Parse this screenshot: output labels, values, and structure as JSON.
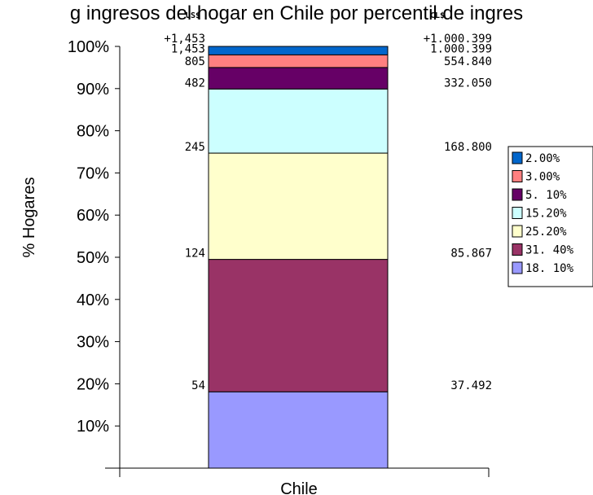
{
  "chart_data": {
    "type": "bar",
    "stacked": true,
    "title": "g ingresos del hogar en Chile por percentil de ingres",
    "ylabel": "% Hogares",
    "categories": [
      "Chile"
    ],
    "ylim": [
      0,
      100
    ],
    "y_ticks": [
      "10%",
      "20%",
      "30%",
      "40%",
      "50%",
      "60%",
      "70%",
      "80%",
      "90%",
      "100%"
    ],
    "series": [
      {
        "name": "18. 10%",
        "value": 18.1,
        "color": "#9999ff"
      },
      {
        "name": "31. 40%",
        "value": 31.4,
        "color": "#993366"
      },
      {
        "name": "25.20%",
        "value": 25.2,
        "color": "#ffffcc"
      },
      {
        "name": "15.20%",
        "value": 15.2,
        "color": "#ccffff"
      },
      {
        "name": "5. 10%",
        "value": 5.1,
        "color": "#660066"
      },
      {
        "name": "3.00%",
        "value": 3.0,
        "color": "#ff8080"
      },
      {
        "name": "2.00%",
        "value": 2.0,
        "color": "#0066cc"
      }
    ],
    "left_axis_header": "US$",
    "right_axis_header": "CL$",
    "left_labels": [
      {
        "text": "54",
        "at": 18.1
      },
      {
        "text": "124",
        "at": 49.5
      },
      {
        "text": "245",
        "at": 74.7
      },
      {
        "text": "482",
        "at": 89.9
      },
      {
        "text": "805",
        "at": 95.0
      },
      {
        "text": "1,453",
        "at": 98.0
      },
      {
        "text": "+1,453",
        "at": 100.0
      }
    ],
    "right_labels": [
      {
        "text": "37.492",
        "at": 18.1
      },
      {
        "text": "85.867",
        "at": 49.5
      },
      {
        "text": "168.800",
        "at": 74.7
      },
      {
        "text": "332.050",
        "at": 89.9
      },
      {
        "text": "554.840",
        "at": 95.0
      },
      {
        "text": "1.000.399",
        "at": 98.0
      },
      {
        "text": "+1.000.399",
        "at": 100.0
      }
    ],
    "legend": [
      "2.00%",
      "3.00%",
      "5. 10%",
      "15.20%",
      "25.20%",
      "31. 40%",
      "18. 10%"
    ],
    "legend_position": "right",
    "grid": false
  }
}
